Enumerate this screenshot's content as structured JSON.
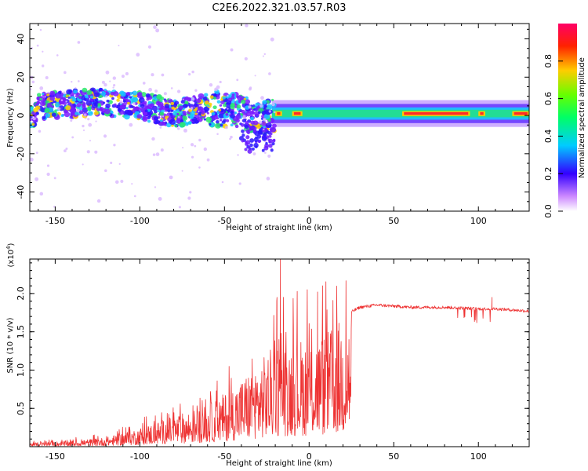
{
  "chart_data": [
    {
      "type": "heatmap",
      "title": "C2E6.2022.321.03.57.R03",
      "xlabel": "Height of straight line (km)",
      "ylabel": "Frequency (Hz)",
      "xlim": [
        -165,
        130
      ],
      "ylim": [
        -50,
        48
      ],
      "x_ticks": [
        -150,
        -100,
        -50,
        0,
        50,
        100
      ],
      "y_ticks": [
        -40,
        -20,
        0,
        20,
        40
      ],
      "colorbar": {
        "label": "Normalized spectral amplitude",
        "range": [
          0,
          1
        ],
        "ticks": [
          "0.0",
          "0.2",
          "0.4",
          "0.6",
          "0.8"
        ],
        "colors": [
          "#ffffff",
          "#7700ff",
          "#0000ff",
          "#00ffff",
          "#00ff00",
          "#ffff00",
          "#ff0000",
          "#ff0066"
        ]
      },
      "ridge": [
        {
          "x": -160,
          "f": 5
        },
        {
          "x": -140,
          "f": 6
        },
        {
          "x": -120,
          "f": 7
        },
        {
          "x": -100,
          "f": 5
        },
        {
          "x": -80,
          "f": 1
        },
        {
          "x": -60,
          "f": 4
        },
        {
          "x": -40,
          "f": 2
        },
        {
          "x": -30,
          "f": -2
        },
        {
          "x": -20,
          "f": 0
        },
        {
          "x": 0,
          "f": 1
        },
        {
          "x": 50,
          "f": 1
        },
        {
          "x": 80,
          "f": 1
        },
        {
          "x": 130,
          "f": 1
        }
      ]
    },
    {
      "type": "line",
      "xlabel": "Height of straight line (km)",
      "ylabel": "SNR (10 * v/v)",
      "y_multiplier": "(x10",
      "y_multiplier_exp": "4",
      "multiplier_close": ")",
      "xlim": [
        -165,
        130
      ],
      "ylim": [
        0,
        2.45
      ],
      "x_ticks": [
        -150,
        -100,
        -50,
        0,
        50,
        100
      ],
      "y_ticks": [
        0.5,
        1.0,
        1.5,
        2.0
      ],
      "color": "#ee3333",
      "envelope": [
        {
          "x": -165,
          "y": 0.05
        },
        {
          "x": -140,
          "y": 0.08
        },
        {
          "x": -120,
          "y": 0.12
        },
        {
          "x": -100,
          "y": 0.25
        },
        {
          "x": -80,
          "y": 0.4
        },
        {
          "x": -60,
          "y": 0.55
        },
        {
          "x": -50,
          "y": 0.7
        },
        {
          "x": -40,
          "y": 0.9
        },
        {
          "x": -30,
          "y": 1.1
        },
        {
          "x": -20,
          "y": 1.35
        },
        {
          "x": -10,
          "y": 1.4
        },
        {
          "x": 0,
          "y": 1.45
        },
        {
          "x": 10,
          "y": 1.5
        },
        {
          "x": 20,
          "y": 1.7
        },
        {
          "x": 30,
          "y": 1.82
        },
        {
          "x": 40,
          "y": 1.85
        },
        {
          "x": 60,
          "y": 1.82
        },
        {
          "x": 80,
          "y": 1.82
        },
        {
          "x": 100,
          "y": 1.8
        },
        {
          "x": 110,
          "y": 1.8
        },
        {
          "x": 130,
          "y": 1.77
        }
      ],
      "features": [
        {
          "x": -17,
          "y": 2.45
        },
        {
          "x": -19,
          "y": 1.95
        },
        {
          "x": 5,
          "y": 2.02
        },
        {
          "x": 7,
          "y": 0.62
        },
        {
          "x": 108,
          "y": 1.95
        }
      ]
    }
  ]
}
